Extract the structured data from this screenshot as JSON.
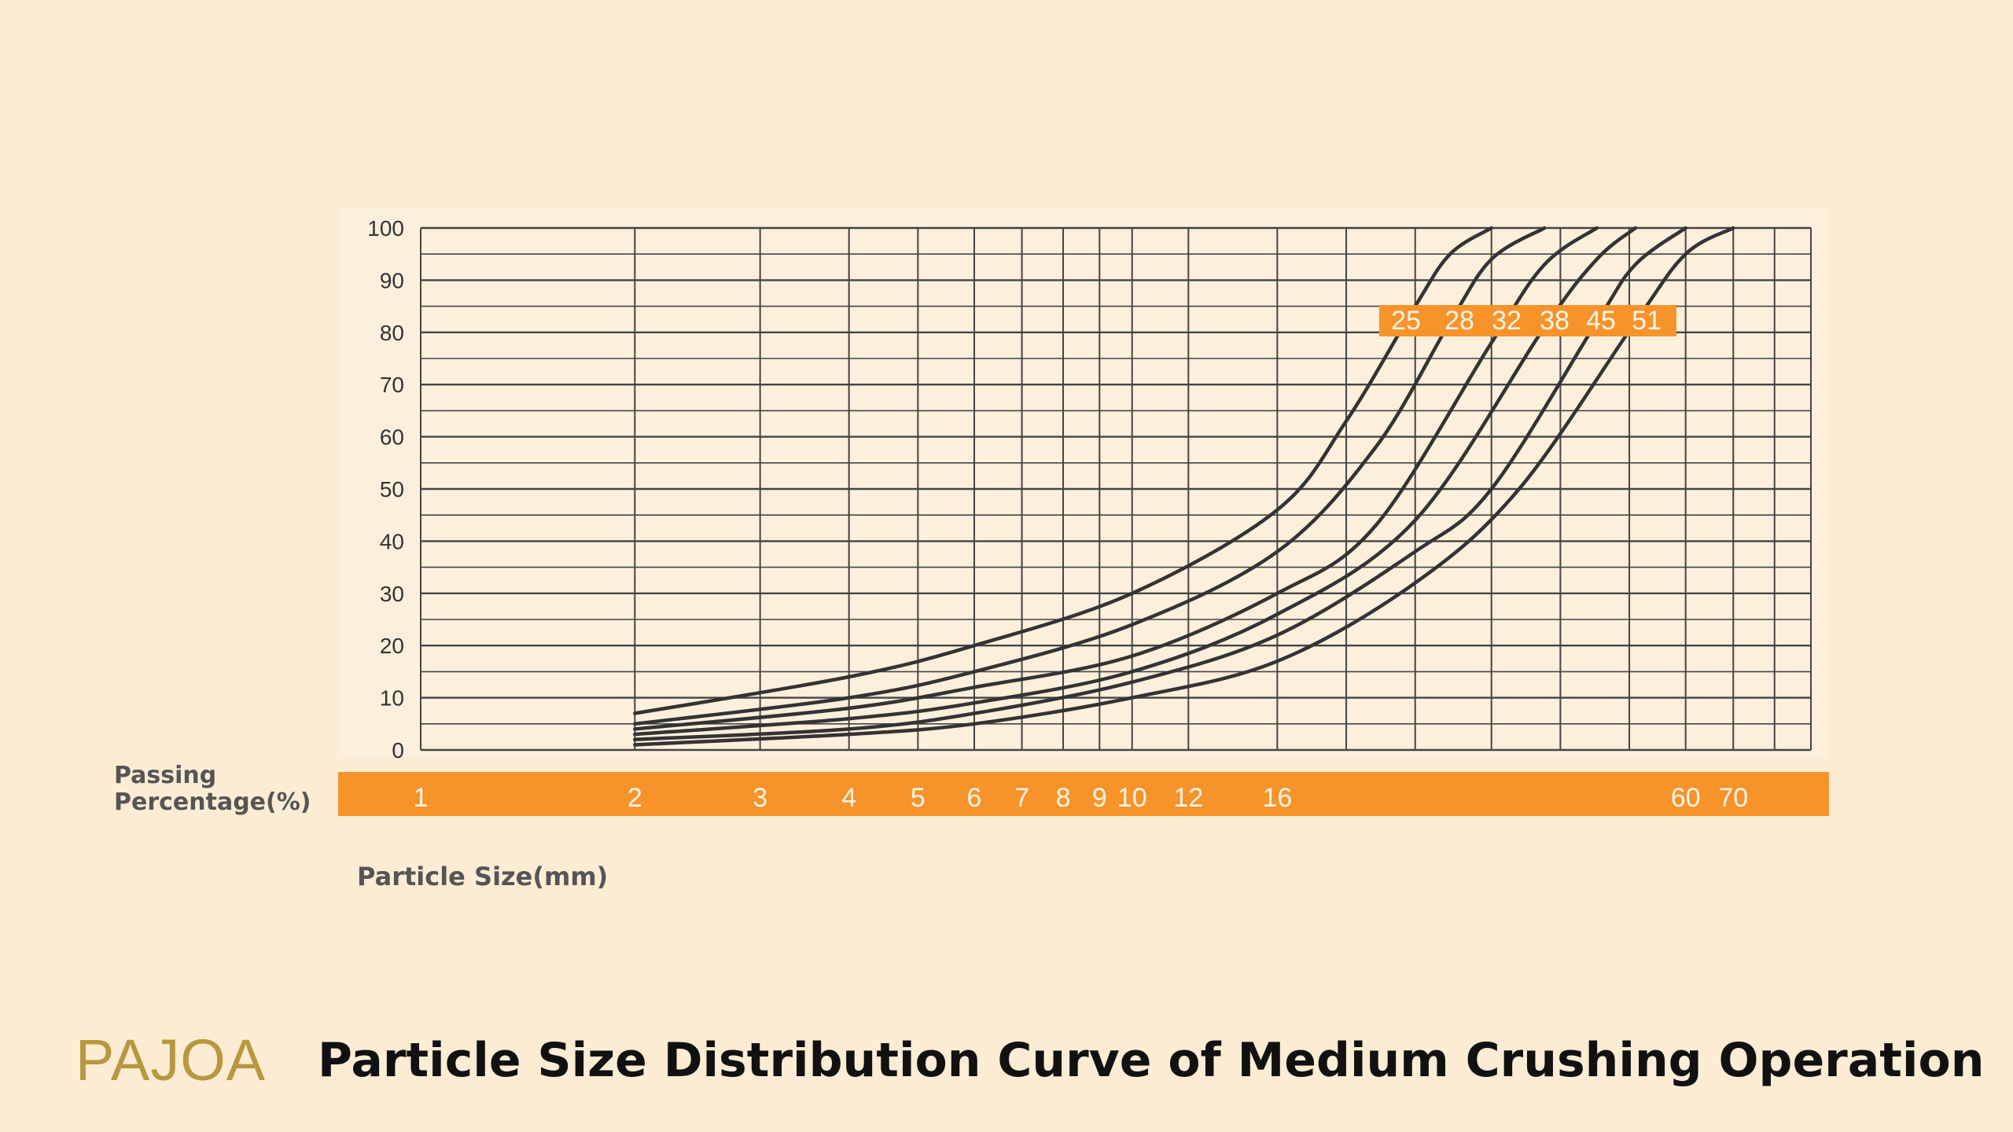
{
  "brand": "PAJOA",
  "title": "Particle Size Distribution Curve of Medium Crushing Operation",
  "chart_data": {
    "type": "line",
    "title": "Particle Size Distribution Curve of Medium Crushing Operation",
    "ylabel": "Passing Percentage(%)",
    "xlabel": "Particle Size(mm)",
    "x_scale": "log",
    "ylim": [
      0,
      100
    ],
    "yticks": [
      0,
      10,
      20,
      30,
      40,
      50,
      60,
      70,
      80,
      90,
      100
    ],
    "xticks": [
      1,
      2,
      3,
      4,
      5,
      6,
      7,
      8,
      9,
      10,
      12,
      16,
      60,
      70
    ],
    "curve_labels": [
      "25",
      "28",
      "32",
      "38",
      "45",
      "51"
    ],
    "grid": true,
    "colors": {
      "background": "#fcecd4",
      "chart_bg": "#fcefdc",
      "accent": "#f7932b",
      "curve": "#333333",
      "grid": "#444444",
      "brand": "#b8973e"
    },
    "series": [
      {
        "name": "25",
        "x": [
          2,
          4,
          6,
          10,
          16,
          20,
          25,
          28,
          32
        ],
        "y": [
          7,
          14,
          20,
          30,
          46,
          63,
          85,
          95,
          100
        ]
      },
      {
        "name": "28",
        "x": [
          2,
          4,
          6,
          10,
          16,
          22,
          28,
          32,
          38
        ],
        "y": [
          5,
          10,
          15,
          24,
          38,
          58,
          82,
          94,
          100
        ]
      },
      {
        "name": "32",
        "x": [
          2,
          4,
          6,
          10,
          16,
          22,
          32,
          38,
          45
        ],
        "y": [
          4,
          8,
          12,
          18,
          30,
          43,
          78,
          93,
          100
        ]
      },
      {
        "name": "38",
        "x": [
          2,
          4,
          6,
          10,
          16,
          25,
          38,
          45,
          51
        ],
        "y": [
          3,
          6,
          9,
          15,
          26,
          44,
          81,
          94,
          100
        ]
      },
      {
        "name": "45",
        "x": [
          2,
          4,
          6,
          10,
          16,
          25,
          32,
          45,
          51,
          60
        ],
        "y": [
          2,
          4,
          7,
          13,
          22,
          38,
          50,
          82,
          93,
          100
        ]
      },
      {
        "name": "51",
        "x": [
          2,
          4,
          6,
          10,
          16,
          25,
          35,
          51,
          60,
          70
        ],
        "y": [
          1,
          3,
          5,
          10,
          17,
          32,
          50,
          82,
          95,
          100
        ]
      }
    ]
  }
}
